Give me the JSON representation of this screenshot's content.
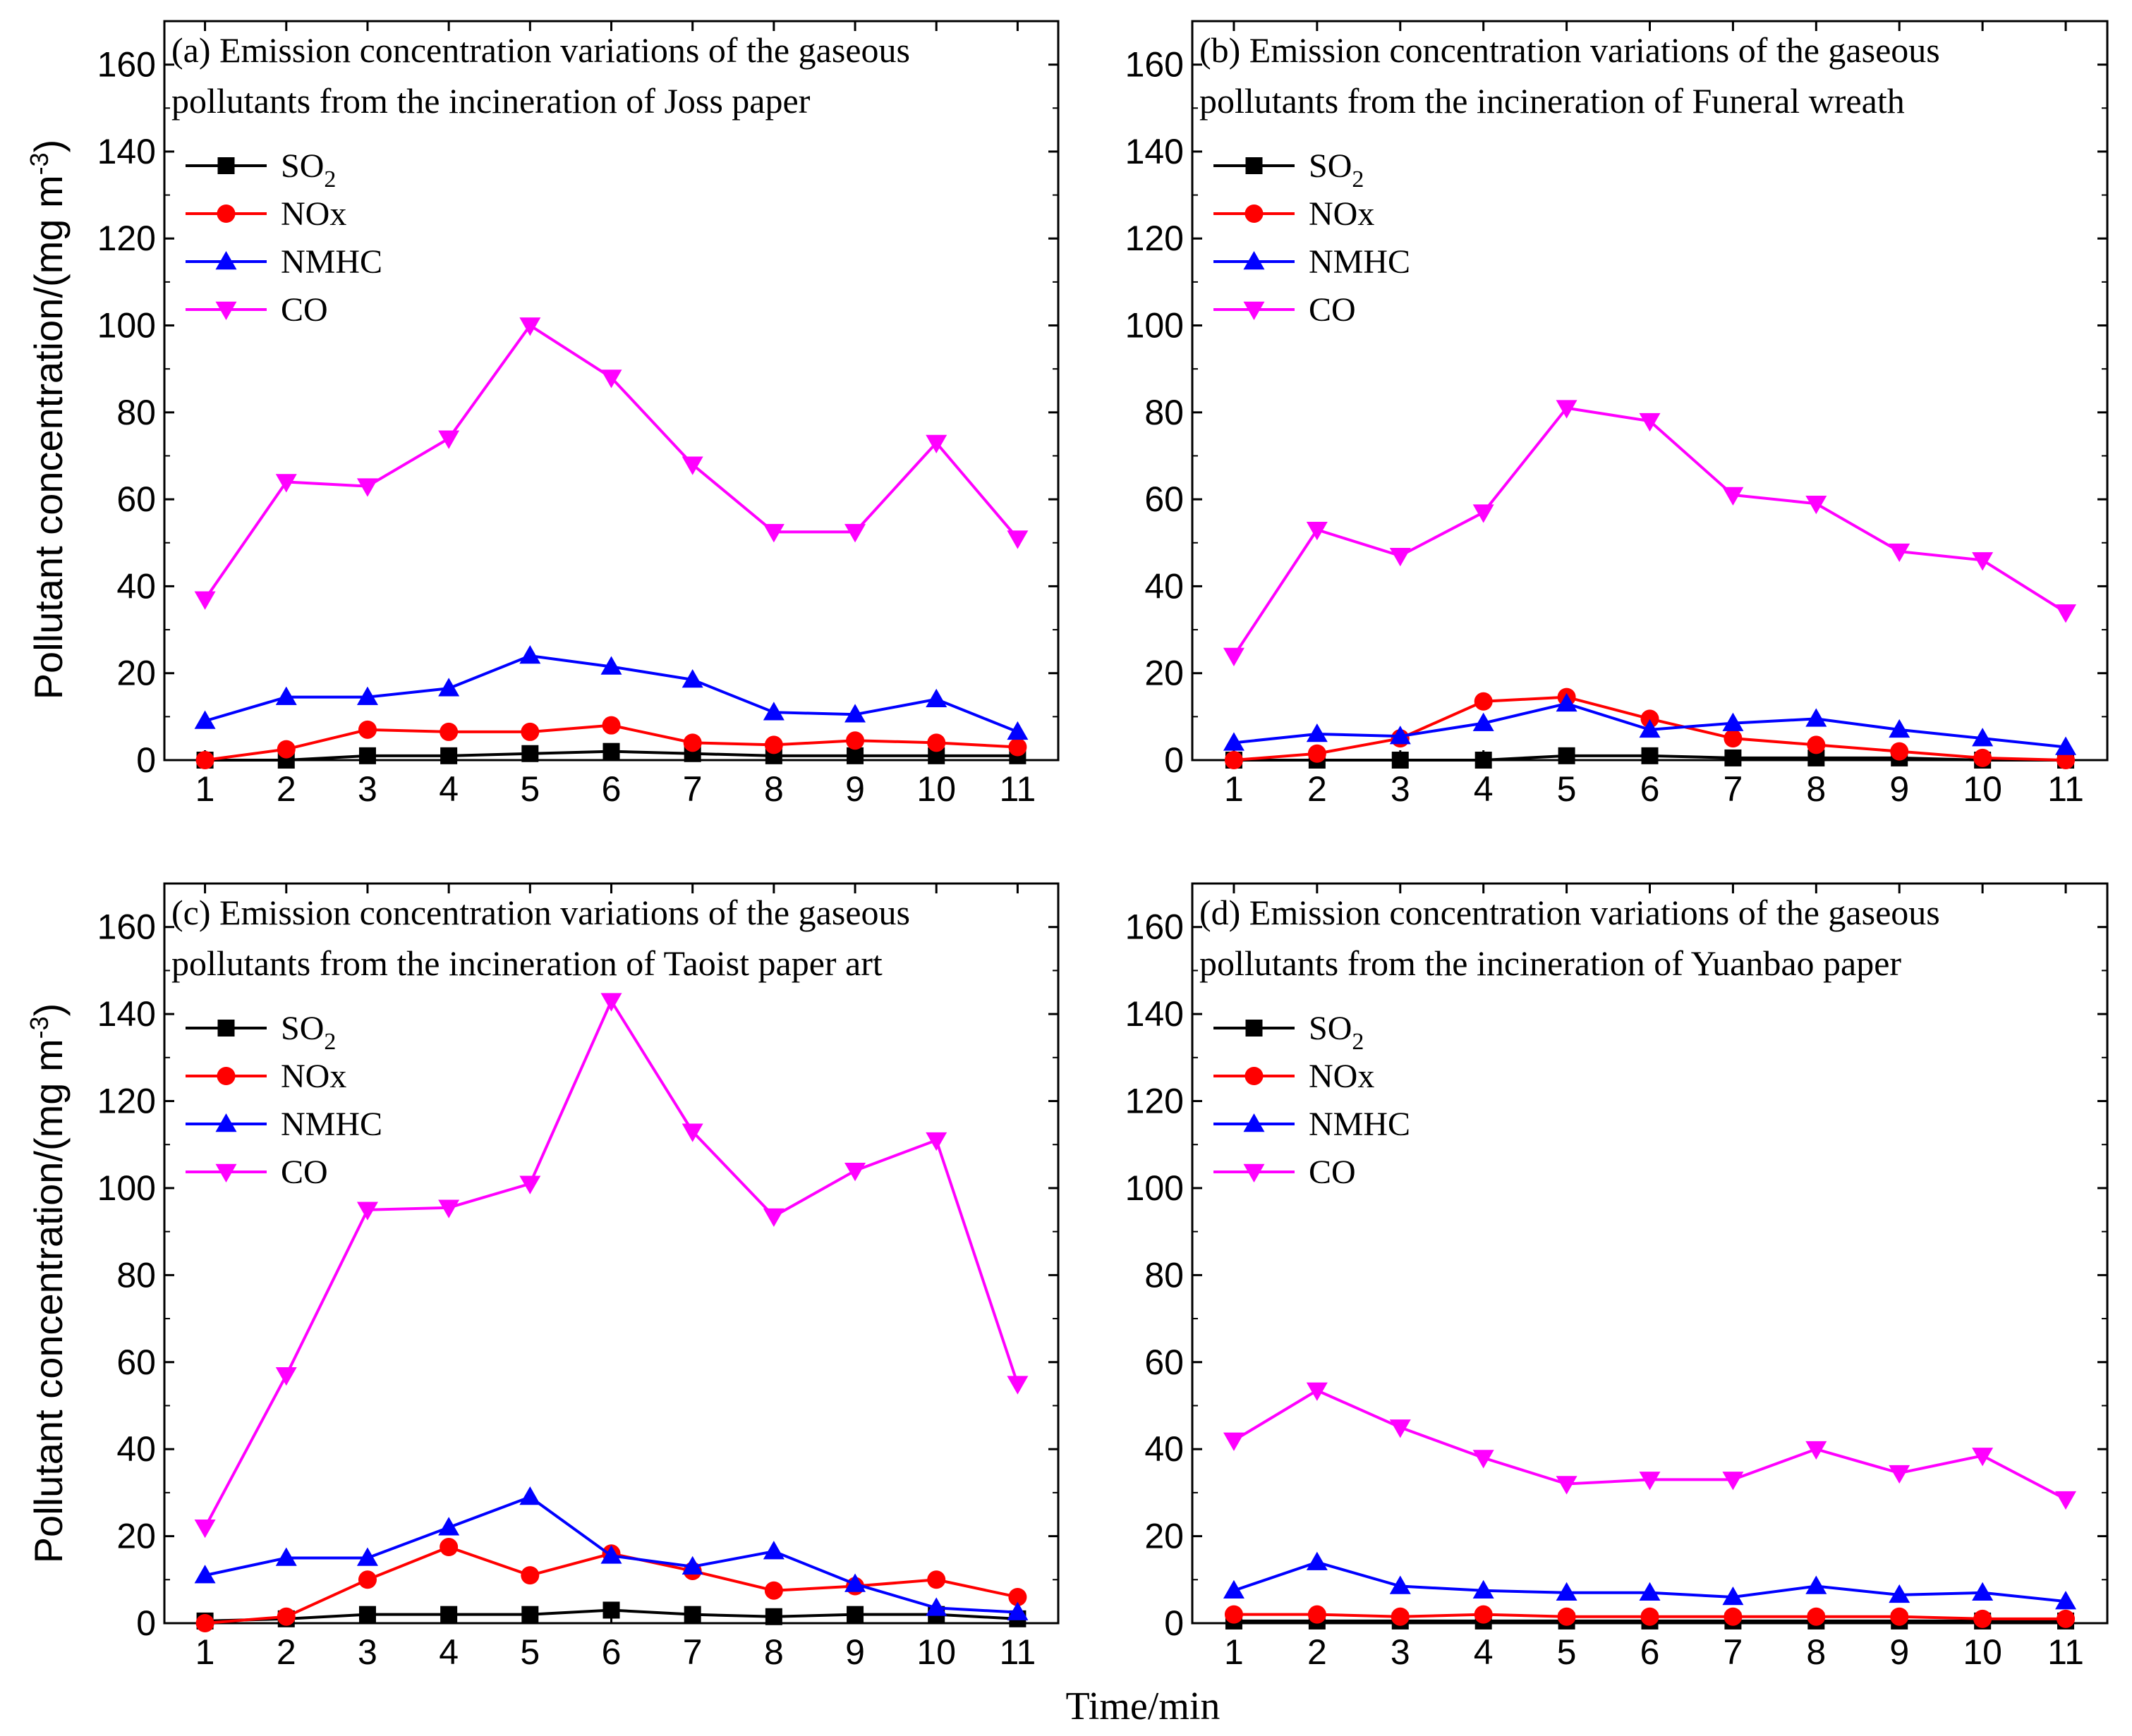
{
  "figure": {
    "ylabel": "Pollutant concentration/(mg m",
    "ylabel_sup": "-3",
    "ylabel_close": ")",
    "xlabel": "Time/min"
  },
  "colors": {
    "SO2": "#000000",
    "NOx": "#ff0000",
    "NMHC": "#0000ff",
    "CO": "#ff00ff"
  },
  "chart_data": [
    {
      "type": "line",
      "title_line1": "(a) Emission concentration variations of the gaseous",
      "title_line2": "pollutants from the incineration of Joss paper",
      "x": [
        1,
        2,
        3,
        4,
        5,
        6,
        7,
        8,
        9,
        10,
        11
      ],
      "xlim": [
        0.5,
        11.5
      ],
      "ylim": [
        0,
        170
      ],
      "yticks": [
        0,
        20,
        40,
        60,
        80,
        100,
        120,
        140,
        160
      ],
      "series": [
        {
          "name": "SO2",
          "marker": "square",
          "values": [
            0,
            0,
            1,
            1,
            1.5,
            2,
            1.5,
            1,
            1,
            1,
            1
          ]
        },
        {
          "name": "NOx",
          "marker": "circle",
          "values": [
            0,
            2.5,
            7,
            6.5,
            6.5,
            8,
            4,
            3.5,
            4.5,
            4,
            3
          ]
        },
        {
          "name": "NMHC",
          "marker": "triangle-up",
          "values": [
            9,
            14.5,
            14.5,
            16.5,
            24,
            21.5,
            18.5,
            11,
            10.5,
            14,
            6.5
          ]
        },
        {
          "name": "CO",
          "marker": "triangle-down",
          "values": [
            37,
            64,
            63,
            74,
            100,
            88,
            68,
            52.5,
            52.5,
            73,
            51
          ]
        }
      ]
    },
    {
      "type": "line",
      "title_line1": "(b) Emission concentration variations of the gaseous",
      "title_line2": "pollutants from the incineration of Funeral wreath",
      "x": [
        1,
        2,
        3,
        4,
        5,
        6,
        7,
        8,
        9,
        10,
        11
      ],
      "xlim": [
        0.5,
        11.5
      ],
      "ylim": [
        0,
        170
      ],
      "yticks": [
        0,
        20,
        40,
        60,
        80,
        100,
        120,
        140,
        160
      ],
      "series": [
        {
          "name": "SO2",
          "marker": "square",
          "values": [
            0,
            0,
            0,
            0,
            1,
            1,
            0.5,
            0.5,
            0.5,
            0,
            0
          ]
        },
        {
          "name": "NOx",
          "marker": "circle",
          "values": [
            0,
            1.5,
            5,
            13.5,
            14.5,
            9.5,
            5,
            3.5,
            2,
            0.5,
            0
          ]
        },
        {
          "name": "NMHC",
          "marker": "triangle-up",
          "values": [
            4,
            6,
            5.5,
            8.5,
            13,
            7,
            8.5,
            9.5,
            7,
            5,
            3
          ]
        },
        {
          "name": "CO",
          "marker": "triangle-down",
          "values": [
            24,
            53,
            47,
            57,
            81,
            78,
            61,
            59,
            48,
            46,
            34
          ]
        }
      ]
    },
    {
      "type": "line",
      "title_line1": "(c) Emission concentration variations of the gaseous",
      "title_line2": "pollutants from the incineration of Taoist paper art",
      "x": [
        1,
        2,
        3,
        4,
        5,
        6,
        7,
        8,
        9,
        10,
        11
      ],
      "xlim": [
        0.5,
        11.5
      ],
      "ylim": [
        0,
        170
      ],
      "yticks": [
        0,
        20,
        40,
        60,
        80,
        100,
        120,
        140,
        160
      ],
      "series": [
        {
          "name": "SO2",
          "marker": "square",
          "values": [
            0.5,
            1,
            2,
            2,
            2,
            3,
            2,
            1.5,
            2,
            2,
            1
          ]
        },
        {
          "name": "NOx",
          "marker": "circle",
          "values": [
            0,
            1.5,
            10,
            17.5,
            11,
            16,
            12,
            7.5,
            8.5,
            10,
            6
          ]
        },
        {
          "name": "NMHC",
          "marker": "triangle-up",
          "values": [
            11,
            15,
            15,
            22,
            29,
            15.5,
            13,
            16.5,
            9,
            3.5,
            2.5
          ]
        },
        {
          "name": "CO",
          "marker": "triangle-down",
          "values": [
            22,
            57,
            95,
            95.5,
            101,
            143,
            113,
            93.5,
            104,
            111,
            55
          ]
        }
      ]
    },
    {
      "type": "line",
      "title_line1": "(d) Emission concentration variations of the gaseous",
      "title_line2": "pollutants from the incineration of Yuanbao paper",
      "x": [
        1,
        2,
        3,
        4,
        5,
        6,
        7,
        8,
        9,
        10,
        11
      ],
      "xlim": [
        0.5,
        11.5
      ],
      "ylim": [
        0,
        170
      ],
      "yticks": [
        0,
        20,
        40,
        60,
        80,
        100,
        120,
        140,
        160
      ],
      "series": [
        {
          "name": "SO2",
          "marker": "square",
          "values": [
            0.5,
            0.5,
            0.5,
            0.5,
            0.5,
            0.5,
            0.5,
            0.5,
            0.5,
            0.5,
            0.5
          ]
        },
        {
          "name": "NOx",
          "marker": "circle",
          "values": [
            2,
            2,
            1.5,
            2,
            1.5,
            1.5,
            1.5,
            1.5,
            1.5,
            1,
            1
          ]
        },
        {
          "name": "NMHC",
          "marker": "triangle-up",
          "values": [
            7.5,
            14,
            8.5,
            7.5,
            7,
            7,
            6,
            8.5,
            6.5,
            7,
            5
          ]
        },
        {
          "name": "CO",
          "marker": "triangle-down",
          "values": [
            42,
            53.5,
            45,
            38,
            32,
            33,
            33,
            40,
            34.5,
            38.5,
            28.5
          ]
        }
      ]
    }
  ]
}
